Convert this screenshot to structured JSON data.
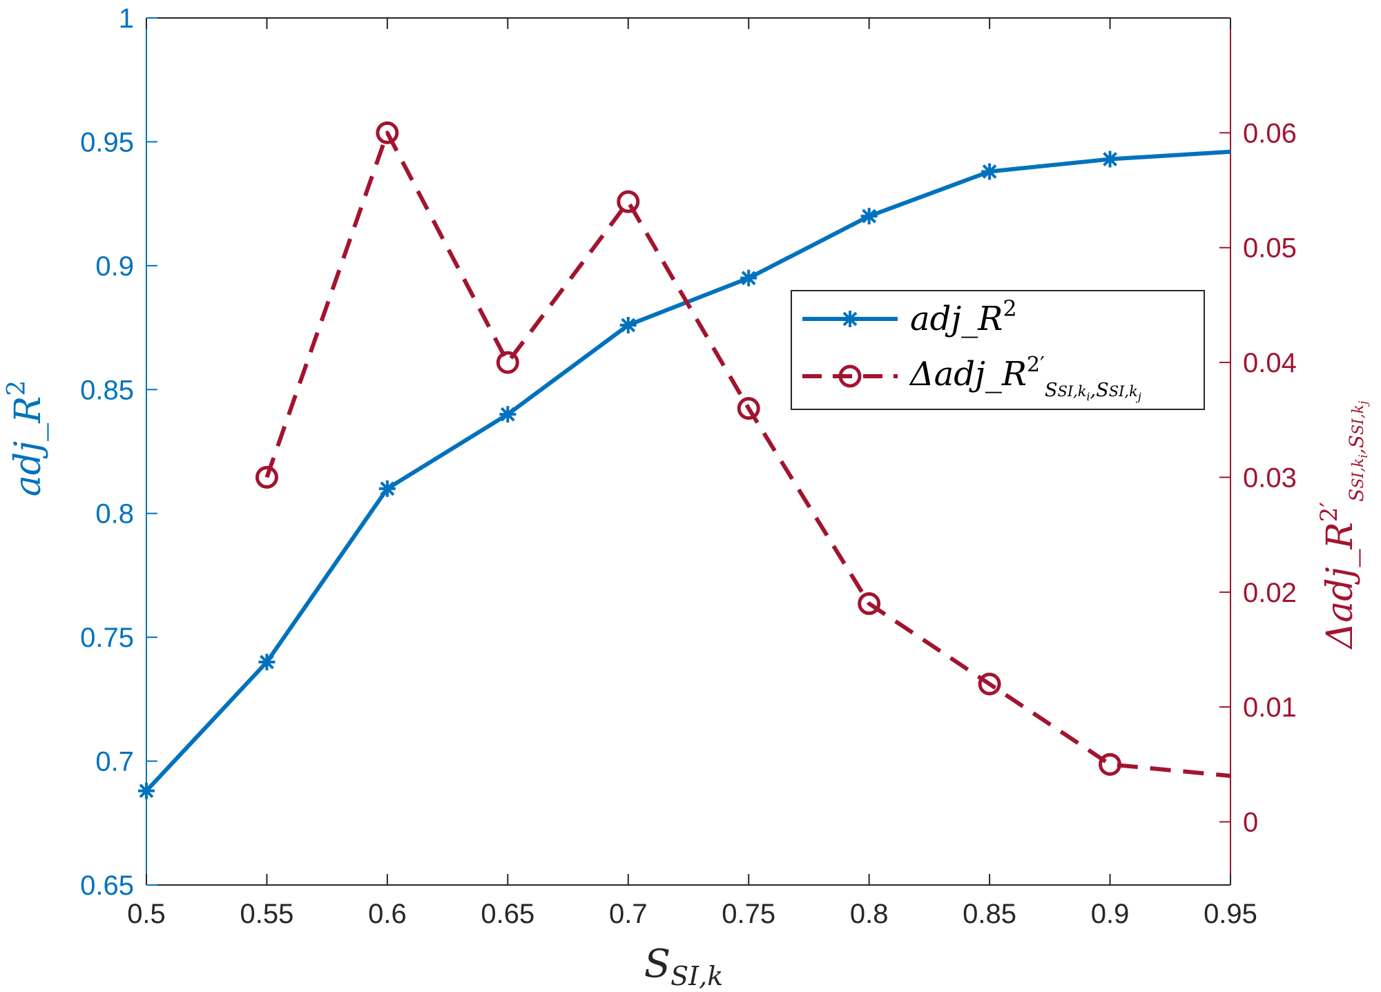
{
  "chart_data": {
    "type": "line",
    "x": [
      0.5,
      0.55,
      0.6,
      0.65,
      0.7,
      0.75,
      0.8,
      0.85,
      0.9,
      0.95
    ],
    "x_ticks": [
      "0.5",
      "0.55",
      "0.6",
      "0.65",
      "0.7",
      "0.75",
      "0.8",
      "0.85",
      "0.9",
      "0.95"
    ],
    "xlim": [
      0.5,
      0.95
    ],
    "y_left": {
      "ylim": [
        0.65,
        1.0
      ],
      "ticks": [
        "0.65",
        "0.7",
        "0.75",
        "0.8",
        "0.85",
        "0.9",
        "0.95",
        "1"
      ],
      "color": "#0072BD"
    },
    "y_right": {
      "ylim": [
        -0.0055,
        0.07
      ],
      "ticks": [
        "0",
        "0.01",
        "0.02",
        "0.03",
        "0.04",
        "0.05",
        "0.06"
      ],
      "color": "#A2142F"
    },
    "series": [
      {
        "axis": "left",
        "style": "solid",
        "marker": "asterisk",
        "color": "#0072BD",
        "values": [
          0.688,
          0.74,
          0.81,
          0.84,
          0.876,
          0.895,
          0.92,
          0.938,
          0.943,
          0.946
        ],
        "marker_mask": [
          true,
          true,
          true,
          true,
          true,
          true,
          true,
          true,
          true,
          false
        ]
      },
      {
        "axis": "right",
        "style": "dashed",
        "marker": "circle",
        "color": "#A2142F",
        "x": [
          0.55,
          0.6,
          0.65,
          0.7,
          0.75,
          0.8,
          0.85,
          0.9,
          0.95
        ],
        "values": [
          0.03,
          0.06,
          0.04,
          0.054,
          0.036,
          0.019,
          0.012,
          0.005,
          0.004
        ],
        "marker_mask": [
          true,
          true,
          true,
          true,
          true,
          true,
          true,
          true,
          false
        ]
      }
    ],
    "labels": {
      "x_base": "S",
      "x_sub": "SI,k",
      "yl_base": "adj_R",
      "yl_sup": "2",
      "yr_base": "Δadj_R",
      "yr_sup": "2′",
      "yr_sub": "S",
      "yr_sub_a": "SI,k",
      "yr_sub_a_i": "i",
      "yr_sub_sep": ",S",
      "yr_sub_b": "SI,k",
      "yr_sub_b_j": "j"
    },
    "legend": {
      "placement": "center-right",
      "entries": [
        "adj_R²",
        "Δadj_R²′"
      ]
    },
    "grid": false,
    "axes_color": "#262626"
  }
}
